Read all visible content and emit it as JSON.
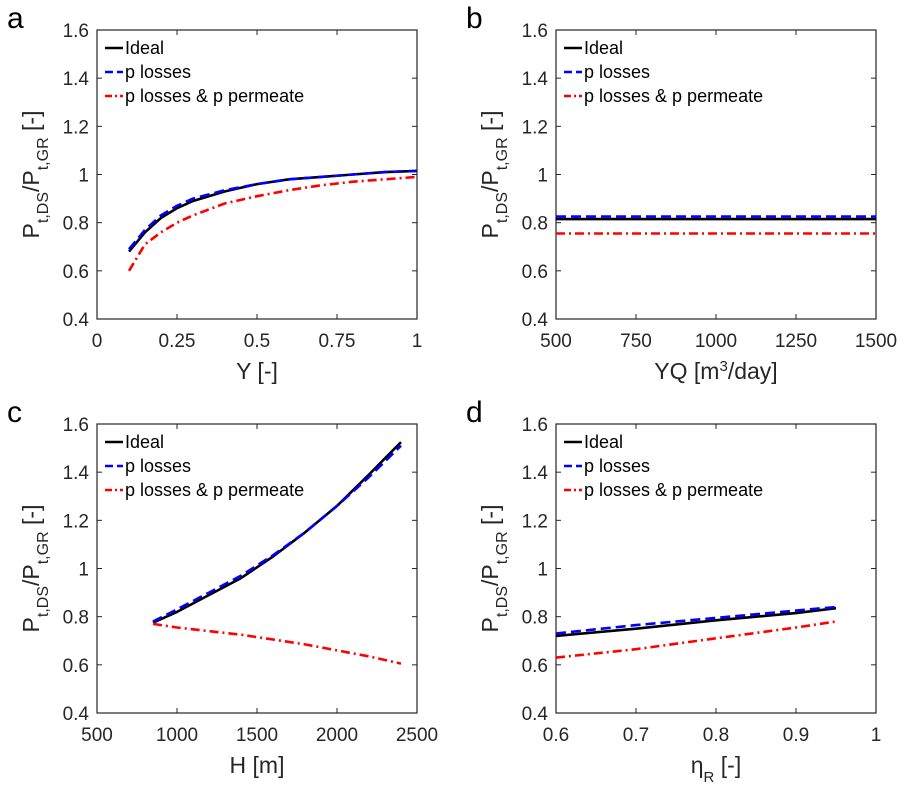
{
  "legend_labels": [
    "Ideal",
    "p losses",
    "p losses & p permeate"
  ],
  "chart_data": [
    {
      "panel_label": "a",
      "type": "line",
      "xlabel": "Y [-]",
      "ylabel": "P_{t,DS}/P_{t,GR} [-]",
      "xlim": [
        0,
        1
      ],
      "ylim": [
        0.4,
        1.6
      ],
      "xticks": [
        "0",
        "0.25",
        "0.5",
        "0.75",
        "1"
      ],
      "yticks": [
        "0.4",
        "0.6",
        "0.8",
        "1",
        "1.2",
        "1.4",
        "1.6"
      ],
      "legend_position": "top-left",
      "grid": false,
      "series": [
        {
          "name": "Ideal",
          "color": "#000000",
          "dash": "solid",
          "x": [
            0.1,
            0.15,
            0.2,
            0.25,
            0.3,
            0.4,
            0.5,
            0.6,
            0.7,
            0.8,
            0.9,
            1.0
          ],
          "y": [
            0.68,
            0.76,
            0.82,
            0.86,
            0.89,
            0.93,
            0.96,
            0.98,
            0.99,
            1.0,
            1.01,
            1.015
          ]
        },
        {
          "name": "p losses",
          "color": "#0000ff",
          "dash": "dashed",
          "x": [
            0.1,
            0.15,
            0.2,
            0.25,
            0.3,
            0.4,
            0.5,
            0.6,
            0.7,
            0.8,
            0.9,
            1.0
          ],
          "y": [
            0.69,
            0.77,
            0.83,
            0.87,
            0.9,
            0.935,
            0.96,
            0.98,
            0.99,
            1.0,
            1.01,
            1.015
          ]
        },
        {
          "name": "p losses & p permeate",
          "color": "#ff0000",
          "dash": "dashdot",
          "x": [
            0.1,
            0.15,
            0.2,
            0.25,
            0.3,
            0.4,
            0.5,
            0.6,
            0.7,
            0.8,
            0.9,
            1.0
          ],
          "y": [
            0.6,
            0.71,
            0.76,
            0.8,
            0.83,
            0.88,
            0.91,
            0.935,
            0.955,
            0.97,
            0.98,
            0.99
          ]
        }
      ]
    },
    {
      "panel_label": "b",
      "type": "line",
      "xlabel": "YQ [m³/day]",
      "ylabel": "P_{t,DS}/P_{t,GR} [-]",
      "xlim": [
        500,
        1500
      ],
      "ylim": [
        0.4,
        1.6
      ],
      "xticks": [
        "500",
        "750",
        "1000",
        "1250",
        "1500"
      ],
      "yticks": [
        "0.4",
        "0.6",
        "0.8",
        "1",
        "1.2",
        "1.4",
        "1.6"
      ],
      "legend_position": "top-left",
      "grid": false,
      "series": [
        {
          "name": "Ideal",
          "color": "#000000",
          "dash": "solid",
          "x": [
            500,
            1500
          ],
          "y": [
            0.815,
            0.815
          ]
        },
        {
          "name": "p losses",
          "color": "#0000ff",
          "dash": "dashed",
          "x": [
            500,
            1500
          ],
          "y": [
            0.825,
            0.825
          ]
        },
        {
          "name": "p losses & p permeate",
          "color": "#ff0000",
          "dash": "dashdot",
          "x": [
            500,
            1500
          ],
          "y": [
            0.755,
            0.755
          ]
        }
      ]
    },
    {
      "panel_label": "c",
      "type": "line",
      "xlabel": "H [m]",
      "ylabel": "P_{t,DS}/P_{t,GR} [-]",
      "xlim": [
        500,
        2500
      ],
      "ylim": [
        0.4,
        1.6
      ],
      "xticks": [
        "500",
        "1000",
        "1500",
        "2000",
        "2500"
      ],
      "yticks": [
        "0.4",
        "0.6",
        "0.8",
        "1",
        "1.2",
        "1.4",
        "1.6"
      ],
      "legend_position": "top-left",
      "grid": false,
      "series": [
        {
          "name": "Ideal",
          "color": "#000000",
          "dash": "solid",
          "x": [
            850,
            1000,
            1200,
            1400,
            1600,
            1800,
            2000,
            2200,
            2400
          ],
          "y": [
            0.775,
            0.82,
            0.89,
            0.96,
            1.05,
            1.15,
            1.26,
            1.39,
            1.525
          ]
        },
        {
          "name": "p losses",
          "color": "#0000ff",
          "dash": "dashed",
          "x": [
            850,
            1000,
            1200,
            1400,
            1600,
            1800,
            2000,
            2200,
            2400
          ],
          "y": [
            0.78,
            0.83,
            0.9,
            0.97,
            1.055,
            1.15,
            1.26,
            1.38,
            1.51
          ]
        },
        {
          "name": "p losses & p permeate",
          "color": "#ff0000",
          "dash": "dashdot",
          "x": [
            850,
            1000,
            1200,
            1400,
            1600,
            1800,
            2000,
            2200,
            2400
          ],
          "y": [
            0.77,
            0.755,
            0.74,
            0.725,
            0.705,
            0.685,
            0.66,
            0.635,
            0.605
          ]
        }
      ]
    },
    {
      "panel_label": "d",
      "type": "line",
      "xlabel": "η_R [-]",
      "ylabel": "P_{t,DS}/P_{t,GR} [-]",
      "xlim": [
        0.6,
        1.0
      ],
      "ylim": [
        0.4,
        1.6
      ],
      "xticks": [
        "0.6",
        "0.7",
        "0.8",
        "0.9",
        "1"
      ],
      "yticks": [
        "0.4",
        "0.6",
        "0.8",
        "1",
        "1.2",
        "1.4",
        "1.6"
      ],
      "legend_position": "top-left",
      "grid": false,
      "series": [
        {
          "name": "Ideal",
          "color": "#000000",
          "dash": "solid",
          "x": [
            0.6,
            0.7,
            0.8,
            0.9,
            0.95
          ],
          "y": [
            0.72,
            0.75,
            0.785,
            0.815,
            0.835
          ]
        },
        {
          "name": "p losses",
          "color": "#0000ff",
          "dash": "dashed",
          "x": [
            0.6,
            0.7,
            0.8,
            0.9,
            0.95
          ],
          "y": [
            0.73,
            0.765,
            0.795,
            0.825,
            0.84
          ]
        },
        {
          "name": "p losses & p permeate",
          "color": "#ff0000",
          "dash": "dashdot",
          "x": [
            0.6,
            0.7,
            0.8,
            0.9,
            0.95
          ],
          "y": [
            0.63,
            0.665,
            0.71,
            0.755,
            0.78
          ]
        }
      ]
    }
  ]
}
